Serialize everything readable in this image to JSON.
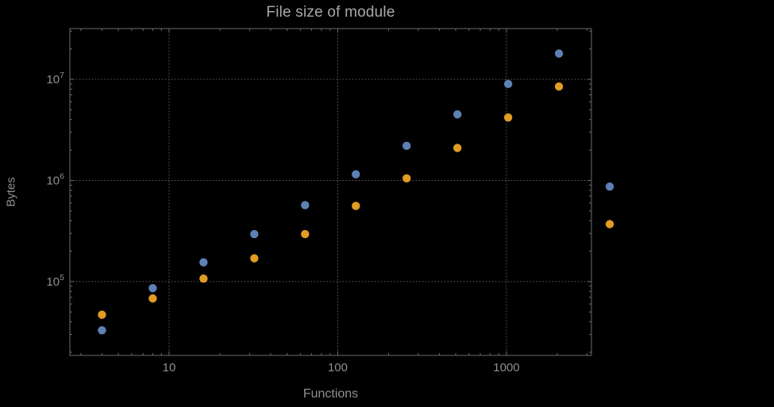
{
  "colors": {
    "background": "#000000",
    "frame": "#6b6b6b",
    "grid": "#585858",
    "title": "#a9a9a9",
    "labels": "#8f8f8f",
    "ticks": "#8f8f8f",
    "series1": "#5e81b5",
    "series2": "#e19c24"
  },
  "chart_data": {
    "type": "scatter",
    "title": "File size of module",
    "xlabel": "Functions",
    "ylabel": "Bytes",
    "x_scale": "log",
    "y_scale": "log",
    "xlim": [
      2.58,
      3190
    ],
    "ylim": [
      18600,
      31800000
    ],
    "grid": "dotted",
    "legend": "none",
    "x_ticks": [
      {
        "value": 10,
        "label": "10"
      },
      {
        "value": 100,
        "label": "100"
      },
      {
        "value": 1000,
        "label": "1000"
      }
    ],
    "y_ticks": [
      {
        "value": 100000,
        "base": "10",
        "exponent": "5"
      },
      {
        "value": 1000000,
        "base": "10",
        "exponent": "6"
      },
      {
        "value": 10000000,
        "base": "10",
        "exponent": "7"
      }
    ],
    "series": [
      {
        "name": "series-1-blue",
        "color": "#5e81b5",
        "points": [
          [
            4,
            33000
          ],
          [
            8,
            86000
          ],
          [
            16,
            155000
          ],
          [
            32,
            295000
          ],
          [
            64,
            570000
          ],
          [
            128,
            1150000
          ],
          [
            256,
            2200000
          ],
          [
            512,
            4500000
          ],
          [
            1024,
            9000000
          ],
          [
            2048,
            18000000
          ],
          [
            4096,
            870000
          ]
        ]
      },
      {
        "name": "series-2-orange",
        "color": "#e19c24",
        "points": [
          [
            4,
            47000
          ],
          [
            8,
            68000
          ],
          [
            16,
            107000
          ],
          [
            32,
            170000
          ],
          [
            64,
            295000
          ],
          [
            128,
            560000
          ],
          [
            256,
            1050000
          ],
          [
            512,
            2100000
          ],
          [
            1024,
            4200000
          ],
          [
            2048,
            8500000
          ],
          [
            4096,
            370000
          ]
        ]
      }
    ]
  }
}
